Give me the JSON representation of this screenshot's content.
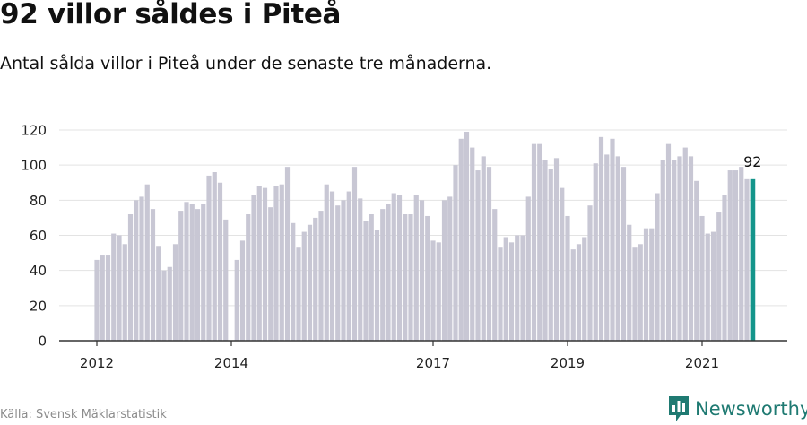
{
  "title": "92 villor såldes i Piteå",
  "subtitle": "Antal sålda villor i Piteå under de senaste tre månaderna.",
  "source": "Källa: Svensk Mäklarstatistik",
  "brand": "Newsworthy",
  "colors": {
    "bar": "#c8c7d4",
    "highlight": "#14958b",
    "grid": "#e3e3e3",
    "axis": "#333333",
    "brand": "#1f7a72"
  },
  "chart_data": {
    "type": "bar",
    "title": "92 villor såldes i Piteå",
    "xlabel": "",
    "ylabel": "",
    "ylim": [
      0,
      120
    ],
    "yticks": [
      0,
      20,
      40,
      60,
      80,
      100,
      120
    ],
    "grid": true,
    "xtick_labels": [
      {
        "label": "2012",
        "index": 0
      },
      {
        "label": "2014",
        "index": 24
      },
      {
        "label": "2017",
        "index": 60
      },
      {
        "label": "2019",
        "index": 84
      },
      {
        "label": "2021",
        "index": 108
      }
    ],
    "values": [
      46,
      49,
      49,
      61,
      60,
      55,
      72,
      80,
      82,
      89,
      75,
      54,
      40,
      42,
      55,
      74,
      79,
      78,
      75,
      78,
      94,
      96,
      90,
      69,
      0,
      46,
      57,
      72,
      83,
      88,
      87,
      76,
      88,
      89,
      99,
      67,
      53,
      62,
      66,
      70,
      74,
      89,
      85,
      77,
      80,
      85,
      99,
      81,
      68,
      72,
      63,
      75,
      78,
      84,
      83,
      72,
      72,
      83,
      80,
      71,
      57,
      56,
      80,
      82,
      100,
      115,
      119,
      110,
      97,
      105,
      99,
      75,
      53,
      59,
      56,
      60,
      60,
      82,
      112,
      112,
      103,
      98,
      104,
      87,
      71,
      52,
      55,
      59,
      77,
      101,
      116,
      106,
      115,
      105,
      99,
      66,
      53,
      55,
      64,
      64,
      84,
      103,
      112,
      103,
      105,
      110,
      105,
      91,
      71,
      61,
      62,
      73,
      83,
      97,
      97,
      99,
      92,
      92
    ],
    "highlight_index": 117,
    "highlight_label": "92"
  }
}
